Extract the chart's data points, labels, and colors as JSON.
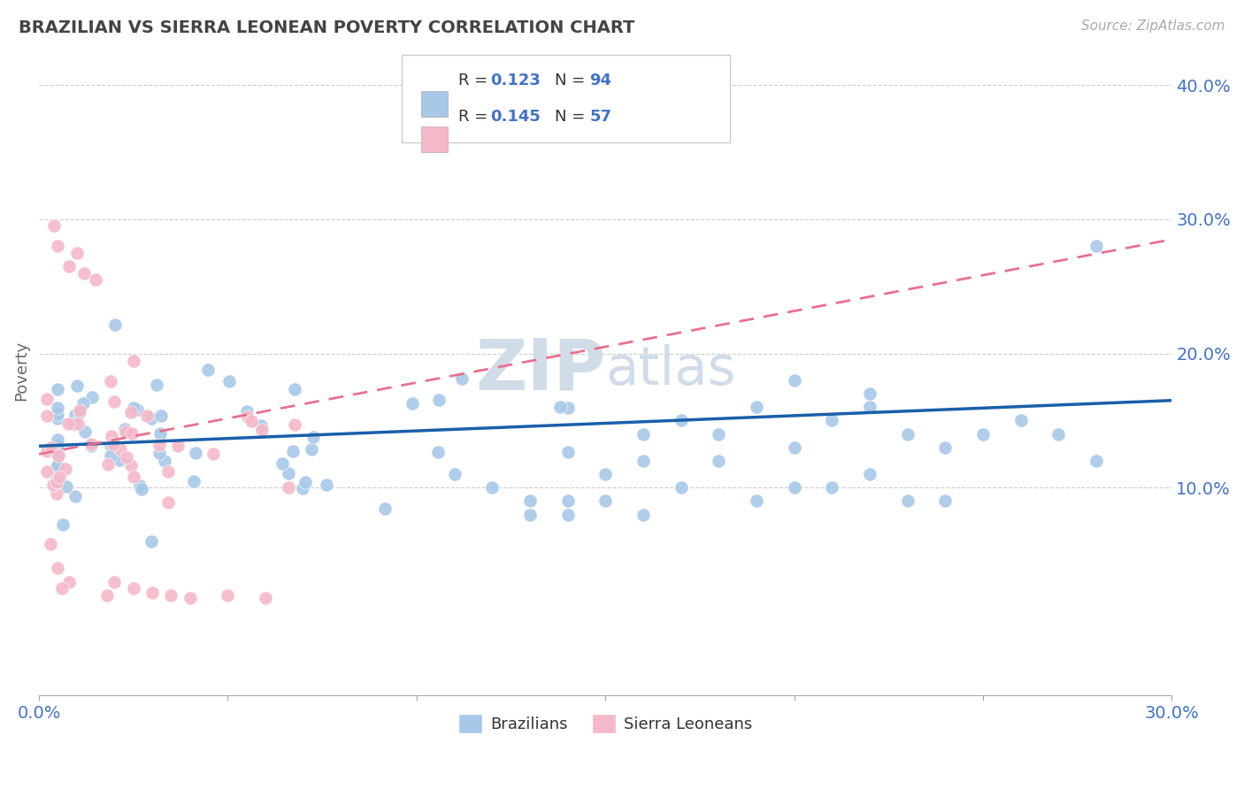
{
  "title": "BRAZILIAN VS SIERRA LEONEAN POVERTY CORRELATION CHART",
  "source": "Source: ZipAtlas.com",
  "ylabel": "Poverty",
  "xlim": [
    0.0,
    0.3
  ],
  "ylim": [
    -0.055,
    0.43
  ],
  "yticks": [
    0.1,
    0.2,
    0.3,
    0.4
  ],
  "ytick_labels": [
    "10.0%",
    "20.0%",
    "30.0%",
    "40.0%"
  ],
  "xticks": [
    0.0,
    0.05,
    0.1,
    0.15,
    0.2,
    0.25,
    0.3
  ],
  "blue_color": "#a8c8e8",
  "pink_color": "#f4b8c8",
  "blue_line_color": "#1a5fa8",
  "pink_line_color": "#e87090",
  "pink_dash_color": "#d4a0b8",
  "watermark_color": "#d0dce8",
  "title_color": "#444444",
  "axis_label_color": "#4472c4",
  "ylabel_color": "#666666",
  "grid_color": "#cccccc",
  "legend_r1_text": "R = 0.123",
  "legend_n1_text": "N = 94",
  "legend_r2_text": "R = 0.145",
  "legend_n2_text": "N = 57",
  "br_trend_start_y": 0.131,
  "br_trend_end_y": 0.165,
  "sl_trend_start_y": 0.125,
  "sl_trend_end_y": 0.285
}
